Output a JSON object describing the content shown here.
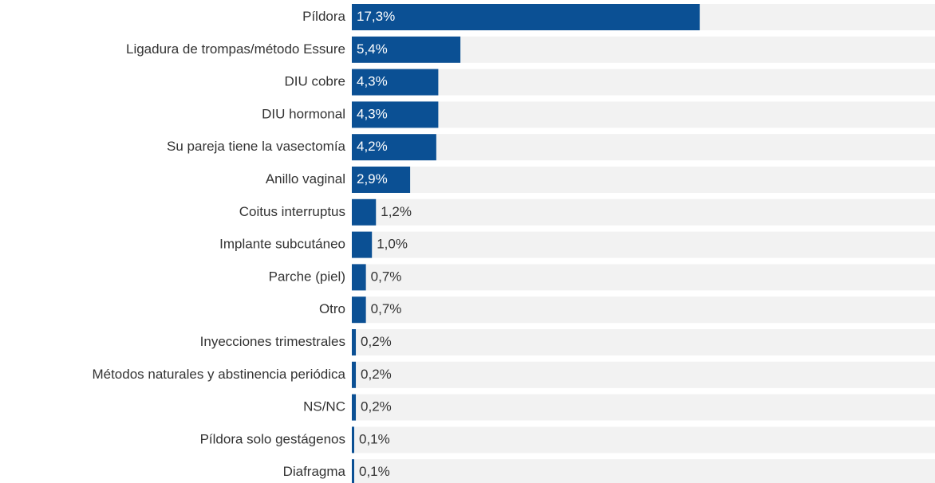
{
  "chart_data": {
    "type": "hbar",
    "categories": [
      "Píldora",
      "Ligadura de trompas/método Essure",
      "DIU cobre",
      "DIU hormonal",
      "Su pareja tiene la vasectomía",
      "Anillo vaginal",
      "Coitus interruptus",
      "Implante subcutáneo",
      "Parche (piel)",
      "Otro",
      "Inyecciones trimestrales",
      "Métodos naturales y abstinencia periódica",
      "NS/NC",
      "Píldora solo gestágenos",
      "Diafragma"
    ],
    "values": [
      17.3,
      5.4,
      4.3,
      4.3,
      4.2,
      2.9,
      1.2,
      1.0,
      0.7,
      0.7,
      0.2,
      0.2,
      0.2,
      0.1,
      0.1
    ],
    "value_labels": [
      "17,3%",
      "5,4%",
      "4,3%",
      "4,3%",
      "4,2%",
      "2,9%",
      "1,2%",
      "1,0%",
      "0,7%",
      "0,7%",
      "0,2%",
      "0,2%",
      "0,2%",
      "0,1%",
      "0,1%"
    ],
    "color": "#0b5094",
    "xlim": [
      0,
      29
    ]
  }
}
